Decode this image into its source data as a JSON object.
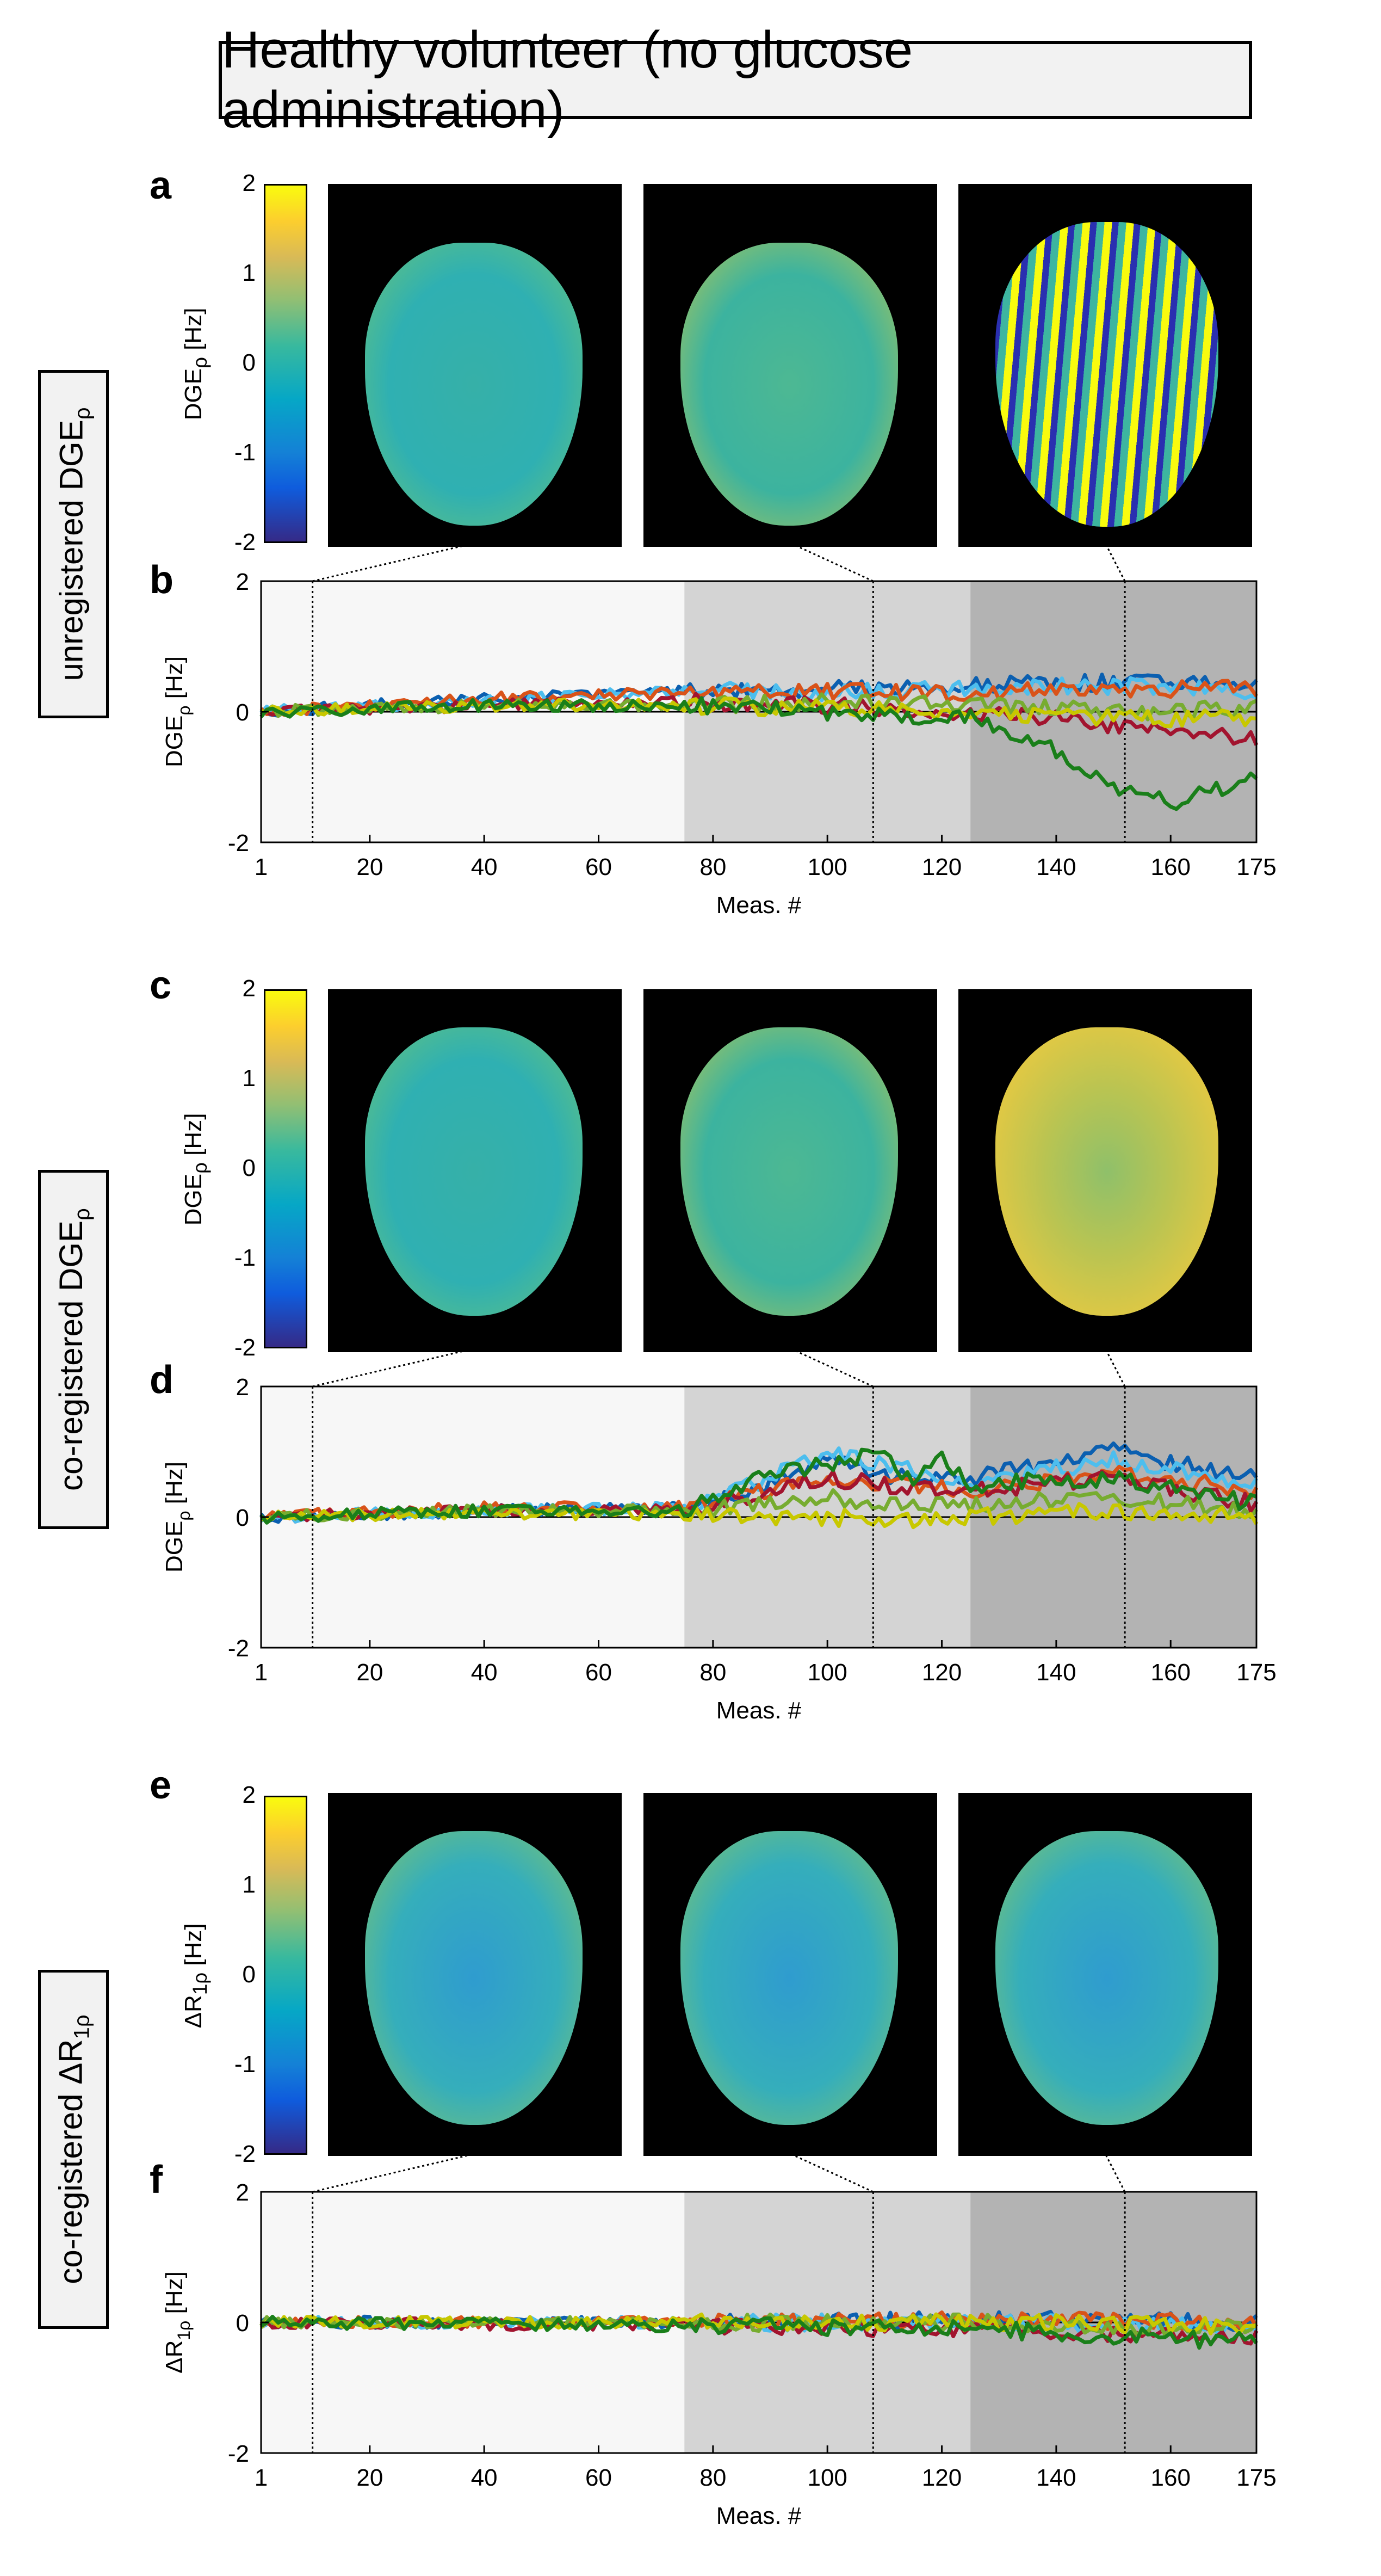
{
  "title": "Healthy volunteer (no glucose administration)",
  "row_labels": [
    "unregistered DGE",
    "co-registered DGE",
    "co-registered ΔR"
  ],
  "row_label_subs": [
    "ρ",
    "ρ",
    "1ρ"
  ],
  "panel_letters": [
    "a",
    "b",
    "c",
    "d",
    "e",
    "f"
  ],
  "colorbar": {
    "ticks": [
      "2",
      "1",
      "0",
      "-1",
      "-2"
    ],
    "labels": [
      "DGE",
      "DGE",
      "ΔR"
    ],
    "label_subs": [
      "ρ",
      "ρ",
      "1ρ"
    ],
    "unit": "[Hz]"
  },
  "shared_axes": {
    "xlabel": "Meas. #",
    "x_ticks": [
      1,
      20,
      40,
      60,
      80,
      100,
      120,
      140,
      160,
      175
    ],
    "y_ticks": [
      -2,
      0,
      2
    ],
    "xlim": [
      1,
      175
    ],
    "ylim": [
      -2,
      2
    ],
    "markers": [
      10,
      108,
      152
    ],
    "shaded_regions": [
      {
        "from": 1,
        "to": 75,
        "color": "#f7f7f7"
      },
      {
        "from": 75,
        "to": 125,
        "color": "#d4d4d4"
      },
      {
        "from": 125,
        "to": 175,
        "color": "#b3b3b3"
      }
    ],
    "series_colors": {
      "s1": "#0b5fb0",
      "s2": "#4dbeee",
      "s3": "#d95319",
      "s4": "#a2142f",
      "s5": "#77ac30",
      "s6": "#c8c800",
      "s7": "#1a7f1a"
    }
  },
  "chart_data": [
    {
      "panel": "b",
      "type": "line",
      "ylabel": "DGE",
      "ylabel_sub": "ρ",
      "yunit": "[Hz]",
      "xlabel": "Meas. #",
      "series": [
        {
          "name": "s1",
          "anchors": [
            [
              1,
              0
            ],
            [
              40,
              0.2
            ],
            [
              75,
              0.3
            ],
            [
              100,
              0.35
            ],
            [
              125,
              0.4
            ],
            [
              150,
              0.45
            ],
            [
              175,
              0.45
            ]
          ]
        },
        {
          "name": "s2",
          "anchors": [
            [
              1,
              0
            ],
            [
              40,
              0.15
            ],
            [
              75,
              0.35
            ],
            [
              100,
              0.3
            ],
            [
              125,
              0.35
            ],
            [
              150,
              0.4
            ],
            [
              175,
              0.3
            ]
          ]
        },
        {
          "name": "s3",
          "anchors": [
            [
              1,
              0
            ],
            [
              40,
              0.2
            ],
            [
              75,
              0.3
            ],
            [
              100,
              0.3
            ],
            [
              125,
              0.3
            ],
            [
              150,
              0.35
            ],
            [
              175,
              0.35
            ]
          ]
        },
        {
          "name": "s4",
          "anchors": [
            [
              1,
              0
            ],
            [
              40,
              0.1
            ],
            [
              75,
              0.15
            ],
            [
              100,
              0.1
            ],
            [
              125,
              0.0
            ],
            [
              150,
              -0.2
            ],
            [
              175,
              -0.4
            ]
          ]
        },
        {
          "name": "s5",
          "anchors": [
            [
              1,
              0
            ],
            [
              40,
              0.1
            ],
            [
              75,
              0.1
            ],
            [
              100,
              0.15
            ],
            [
              125,
              0.1
            ],
            [
              150,
              0.0
            ],
            [
              175,
              0.05
            ]
          ]
        },
        {
          "name": "s6",
          "anchors": [
            [
              1,
              0
            ],
            [
              40,
              0.1
            ],
            [
              75,
              0.1
            ],
            [
              100,
              0.05
            ],
            [
              125,
              0.0
            ],
            [
              150,
              -0.1
            ],
            [
              175,
              -0.1
            ]
          ]
        },
        {
          "name": "s7",
          "anchors": [
            [
              1,
              0
            ],
            [
              40,
              0.1
            ],
            [
              75,
              0.1
            ],
            [
              100,
              0.0
            ],
            [
              125,
              -0.1
            ],
            [
              140,
              -0.6
            ],
            [
              150,
              -1.2
            ],
            [
              160,
              -1.4
            ],
            [
              175,
              -1.0
            ]
          ]
        }
      ]
    },
    {
      "panel": "d",
      "type": "line",
      "ylabel": "DGE",
      "ylabel_sub": "ρ",
      "yunit": "[Hz]",
      "xlabel": "Meas. #",
      "series": [
        {
          "name": "s1",
          "anchors": [
            [
              1,
              0
            ],
            [
              40,
              0.1
            ],
            [
              75,
              0.15
            ],
            [
              90,
              0.5
            ],
            [
              100,
              0.9
            ],
            [
              110,
              0.6
            ],
            [
              125,
              0.6
            ],
            [
              150,
              1.0
            ],
            [
              175,
              0.6
            ]
          ]
        },
        {
          "name": "s2",
          "anchors": [
            [
              1,
              0
            ],
            [
              40,
              0.1
            ],
            [
              75,
              0.15
            ],
            [
              90,
              0.6
            ],
            [
              100,
              1.0
            ],
            [
              110,
              0.8
            ],
            [
              125,
              0.5
            ],
            [
              150,
              0.9
            ],
            [
              175,
              0.5
            ]
          ]
        },
        {
          "name": "s3",
          "anchors": [
            [
              1,
              0
            ],
            [
              40,
              0.15
            ],
            [
              75,
              0.15
            ],
            [
              90,
              0.4
            ],
            [
              100,
              0.6
            ],
            [
              110,
              0.5
            ],
            [
              125,
              0.4
            ],
            [
              150,
              0.7
            ],
            [
              175,
              0.4
            ]
          ]
        },
        {
          "name": "s4",
          "anchors": [
            [
              1,
              0
            ],
            [
              40,
              0.1
            ],
            [
              75,
              0.1
            ],
            [
              90,
              0.4
            ],
            [
              100,
              0.6
            ],
            [
              110,
              0.5
            ],
            [
              125,
              0.4
            ],
            [
              150,
              0.6
            ],
            [
              175,
              0.2
            ]
          ]
        },
        {
          "name": "s5",
          "anchors": [
            [
              1,
              0
            ],
            [
              40,
              0.1
            ],
            [
              75,
              0.1
            ],
            [
              90,
              0.2
            ],
            [
              100,
              0.3
            ],
            [
              110,
              0.2
            ],
            [
              125,
              0.2
            ],
            [
              150,
              0.3
            ],
            [
              175,
              0.1
            ]
          ]
        },
        {
          "name": "s6",
          "anchors": [
            [
              1,
              0
            ],
            [
              40,
              0.05
            ],
            [
              75,
              0.05
            ],
            [
              90,
              0.0
            ],
            [
              100,
              0.0
            ],
            [
              110,
              -0.05
            ],
            [
              125,
              0.0
            ],
            [
              150,
              0.1
            ],
            [
              175,
              0.0
            ]
          ]
        },
        {
          "name": "s7",
          "anchors": [
            [
              1,
              0
            ],
            [
              40,
              0.1
            ],
            [
              75,
              0.1
            ],
            [
              90,
              0.7
            ],
            [
              100,
              0.8
            ],
            [
              108,
              1.0
            ],
            [
              115,
              0.6
            ],
            [
              120,
              0.9
            ],
            [
              125,
              0.5
            ],
            [
              150,
              0.6
            ],
            [
              175,
              0.2
            ]
          ]
        }
      ]
    },
    {
      "panel": "f",
      "type": "line",
      "ylabel": "ΔR",
      "ylabel_sub": "1ρ",
      "yunit": "[Hz]",
      "xlabel": "Meas. #",
      "series": [
        {
          "name": "s1",
          "anchors": [
            [
              1,
              0
            ],
            [
              75,
              0.0
            ],
            [
              125,
              0.05
            ],
            [
              175,
              0.0
            ]
          ]
        },
        {
          "name": "s2",
          "anchors": [
            [
              1,
              0
            ],
            [
              75,
              0.0
            ],
            [
              125,
              0.0
            ],
            [
              175,
              -0.05
            ]
          ]
        },
        {
          "name": "s3",
          "anchors": [
            [
              1,
              0
            ],
            [
              75,
              0.0
            ],
            [
              125,
              0.05
            ],
            [
              175,
              0.0
            ]
          ]
        },
        {
          "name": "s4",
          "anchors": [
            [
              1,
              0
            ],
            [
              75,
              -0.05
            ],
            [
              125,
              -0.1
            ],
            [
              175,
              -0.25
            ]
          ]
        },
        {
          "name": "s5",
          "anchors": [
            [
              1,
              0
            ],
            [
              75,
              0.0
            ],
            [
              125,
              0.0
            ],
            [
              175,
              -0.1
            ]
          ]
        },
        {
          "name": "s6",
          "anchors": [
            [
              1,
              0
            ],
            [
              75,
              0.0
            ],
            [
              125,
              0.0
            ],
            [
              175,
              -0.05
            ]
          ]
        },
        {
          "name": "s7",
          "anchors": [
            [
              1,
              0
            ],
            [
              75,
              -0.05
            ],
            [
              125,
              -0.1
            ],
            [
              175,
              -0.3
            ]
          ]
        }
      ]
    }
  ]
}
